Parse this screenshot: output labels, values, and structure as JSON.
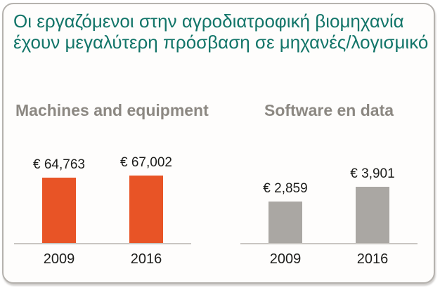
{
  "title": {
    "line1": "Οι εργαζόμενοι στην αγροδιατροφική βιομηχανία",
    "line2": "έχουν μεγαλύτερη πρόσβαση σε μηχανές/λογισμικό"
  },
  "colors": {
    "title_text": "#127569",
    "panel_heading_text": "#8c8882",
    "machines_bar": "#e85426",
    "software_bar": "#aaa7a3",
    "value_text": "#1d1d1b",
    "axis_line": "#c9c6c2",
    "card_border": "#b5b2ae"
  },
  "chart_data": [
    {
      "type": "bar",
      "title": "Machines and equipment",
      "categories": [
        "2009",
        "2016"
      ],
      "values": [
        64763,
        67002
      ],
      "value_labels": [
        "€ 64,763",
        "€ 67,002"
      ],
      "bar_color": "#e85426",
      "unit": "EUR",
      "grid": false,
      "legend": "none"
    },
    {
      "type": "bar",
      "title": "Software en data",
      "categories": [
        "2009",
        "2016"
      ],
      "values": [
        2859,
        3901
      ],
      "value_labels": [
        "€ 2,859",
        "€ 3,901"
      ],
      "bar_color": "#aaa7a3",
      "unit": "EUR",
      "grid": false,
      "legend": "none"
    }
  ]
}
